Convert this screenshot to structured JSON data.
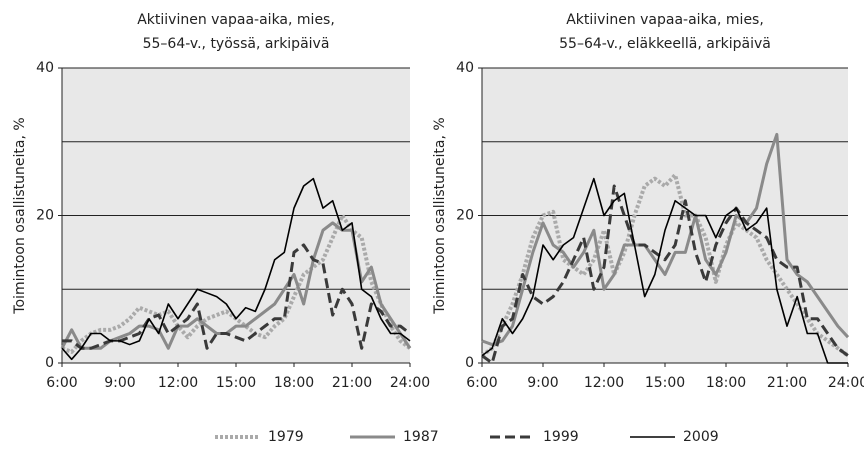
{
  "chart_data": [
    {
      "type": "line",
      "title": [
        "Aktiivinen vapaa-aika, mies,",
        "55–64-v., työssä, arkipäivä"
      ],
      "ylabel": "Toimintoon osallistuneita, %",
      "x": [
        6,
        6.5,
        7,
        7.5,
        8,
        8.5,
        9,
        9.5,
        10,
        10.5,
        11,
        11.5,
        12,
        12.5,
        13,
        13.5,
        14,
        14.5,
        15,
        15.5,
        16,
        16.5,
        17,
        17.5,
        18,
        18.5,
        19,
        19.5,
        20,
        20.5,
        21,
        21.5,
        22,
        22.5,
        23,
        23.5,
        24
      ],
      "xlim": [
        6,
        24
      ],
      "xticks": [
        {
          "value": 6,
          "label": "6:00"
        },
        {
          "value": 9,
          "label": "9:00"
        },
        {
          "value": 12,
          "label": "12:00"
        },
        {
          "value": 15,
          "label": "15:00"
        },
        {
          "value": 18,
          "label": "18:00"
        },
        {
          "value": 21,
          "label": "21:00"
        },
        {
          "value": 24,
          "label": "24:00"
        }
      ],
      "ylim": [
        0,
        40
      ],
      "yticks": [
        0,
        20,
        40
      ],
      "grid_lines": [
        10,
        20,
        30,
        40
      ],
      "series": [
        {
          "name": "1979",
          "color": "#aaaaaa",
          "style": "dotted",
          "values": [
            2,
            1.5,
            3,
            4,
            4.5,
            4.5,
            5,
            6,
            7.5,
            7,
            6.5,
            7,
            5,
            3.5,
            5,
            6,
            6.5,
            7,
            6,
            5,
            4,
            3.5,
            5,
            6,
            9,
            12,
            13,
            14,
            17,
            20,
            18,
            17,
            11,
            8,
            5,
            3,
            2
          ]
        },
        {
          "name": "1987",
          "color": "#8a8a8a",
          "style": "solid",
          "values": [
            2,
            4.5,
            2,
            2,
            2,
            3,
            3.5,
            4,
            5,
            5,
            4.5,
            2,
            5,
            5,
            6,
            5,
            4,
            4,
            5,
            5,
            6,
            7,
            8,
            10,
            12,
            8,
            14,
            18,
            19,
            18,
            18,
            11,
            13,
            8,
            6,
            4,
            2
          ]
        },
        {
          "name": "1999",
          "color": "#3a3a3a",
          "style": "dashed",
          "values": [
            3,
            3,
            2,
            2,
            2.5,
            3,
            3,
            3.5,
            4,
            6,
            6.5,
            4,
            5,
            6,
            8,
            2,
            4,
            4,
            3.5,
            3,
            4,
            5,
            6,
            6,
            15,
            16,
            14,
            13.5,
            6.5,
            10,
            8,
            2,
            8,
            7,
            5,
            5,
            4
          ]
        },
        {
          "name": "2009",
          "color": "#000000",
          "style": "thin",
          "values": [
            2,
            0.5,
            2,
            4,
            4,
            3,
            3,
            2.5,
            3,
            6,
            4,
            8,
            6,
            8,
            10,
            9.5,
            9,
            8,
            6,
            7.5,
            7,
            10,
            14,
            15,
            21,
            24,
            25,
            21,
            22,
            18,
            19,
            10,
            9,
            6,
            4,
            4,
            3
          ]
        }
      ]
    },
    {
      "type": "line",
      "title": [
        "Aktiivinen vapaa-aika, mies,",
        "55–64-v., eläkkeellä, arkipäivä"
      ],
      "ylabel": "Toimintoon osallistuneita, %",
      "x": [
        6,
        6.5,
        7,
        7.5,
        8,
        8.5,
        9,
        9.5,
        10,
        10.5,
        11,
        11.5,
        12,
        12.5,
        13,
        13.5,
        14,
        14.5,
        15,
        15.5,
        16,
        16.5,
        17,
        17.5,
        18,
        18.5,
        19,
        19.5,
        20,
        20.5,
        21,
        21.5,
        22,
        22.5,
        23,
        23.5,
        24
      ],
      "xlim": [
        6,
        24
      ],
      "xticks": [
        {
          "value": 6,
          "label": "6:00"
        },
        {
          "value": 9,
          "label": "9:00"
        },
        {
          "value": 12,
          "label": "12:00"
        },
        {
          "value": 15,
          "label": "15:00"
        },
        {
          "value": 18,
          "label": "18:00"
        },
        {
          "value": 21,
          "label": "21:00"
        },
        {
          "value": 24,
          "label": "24:00"
        }
      ],
      "ylim": [
        0,
        40
      ],
      "yticks": [
        0,
        20,
        40
      ],
      "grid_lines": [
        10,
        20,
        30,
        40
      ],
      "series": [
        {
          "name": "1979",
          "color": "#aaaaaa",
          "style": "dotted",
          "values": [
            1,
            2,
            5,
            8,
            12,
            17,
            20,
            20.5,
            14,
            13,
            12,
            14,
            18,
            12,
            15,
            20,
            24,
            25,
            24,
            25.5,
            20,
            20,
            17,
            11,
            16,
            19,
            18,
            17,
            14,
            12,
            10,
            8,
            6,
            4,
            3,
            2,
            1
          ]
        },
        {
          "name": "1987",
          "color": "#8a8a8a",
          "style": "solid",
          "values": [
            3,
            2.5,
            3,
            5,
            10,
            15,
            19,
            16,
            15,
            13,
            15,
            18,
            10,
            12,
            16,
            16,
            16,
            14,
            12,
            15,
            15,
            20,
            14,
            12,
            15,
            20,
            19,
            21,
            27,
            31,
            14,
            12,
            11,
            9,
            7,
            5,
            3.5
          ]
        },
        {
          "name": "1999",
          "color": "#3a3a3a",
          "style": "dashed",
          "values": [
            1,
            0,
            5,
            6,
            12,
            9,
            8,
            9,
            11,
            14,
            17,
            10,
            13,
            24,
            20,
            16,
            16,
            15,
            14,
            16,
            22,
            15,
            11,
            16,
            19,
            21,
            19,
            18,
            17,
            14,
            13,
            13,
            6,
            6,
            4,
            2,
            1
          ]
        },
        {
          "name": "2009",
          "color": "#000000",
          "style": "thin",
          "values": [
            1,
            2,
            6,
            4,
            6,
            9,
            16,
            14,
            16,
            17,
            21,
            25,
            20,
            22,
            23,
            16,
            9,
            12,
            18,
            22,
            21,
            20,
            20,
            17,
            20,
            21,
            18,
            19,
            21,
            10,
            5,
            9,
            4,
            4,
            0,
            0,
            0
          ]
        }
      ]
    }
  ]
}
